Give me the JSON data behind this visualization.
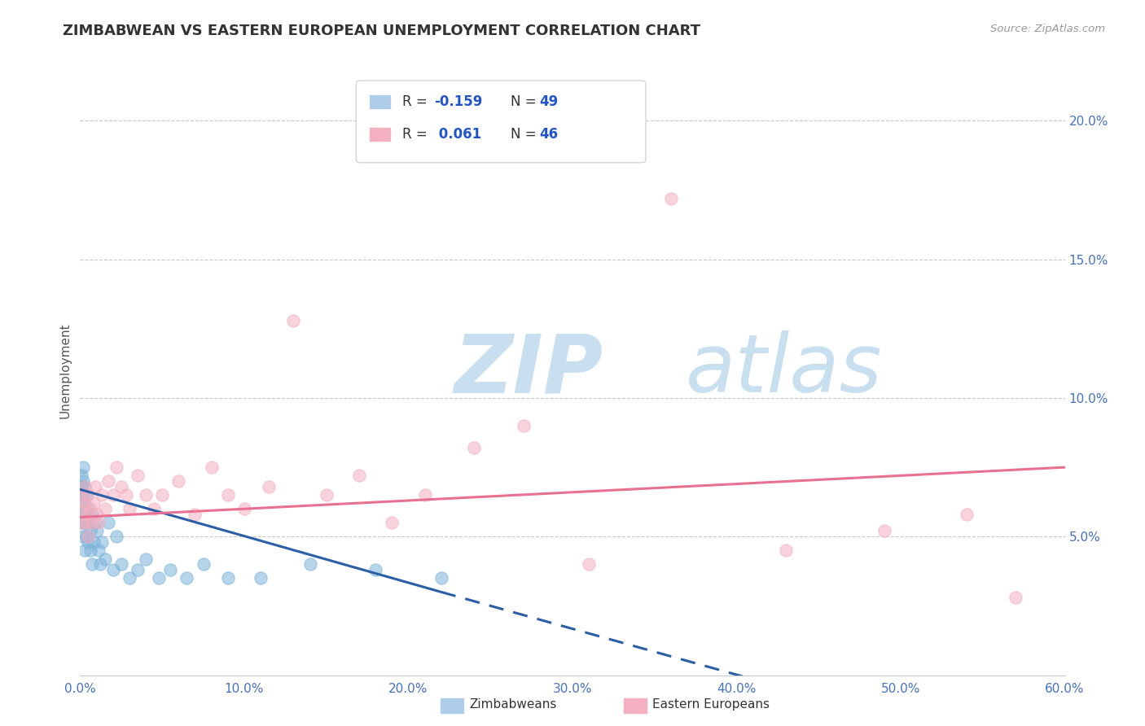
{
  "title": "ZIMBABWEAN VS EASTERN EUROPEAN UNEMPLOYMENT CORRELATION CHART",
  "source": "Source: ZipAtlas.com",
  "ylabel": "Unemployment",
  "xlim": [
    0,
    0.6
  ],
  "ylim": [
    0,
    0.22
  ],
  "xticks": [
    0.0,
    0.1,
    0.2,
    0.3,
    0.4,
    0.5,
    0.6
  ],
  "xticklabels": [
    "0.0%",
    "10.0%",
    "20.0%",
    "30.0%",
    "40.0%",
    "50.0%",
    "60.0%"
  ],
  "yticks": [
    0.05,
    0.1,
    0.15,
    0.2
  ],
  "yticklabels": [
    "5.0%",
    "10.0%",
    "15.0%",
    "20.0%"
  ],
  "zimbabwe_color": "#7ab3d9",
  "eastern_color": "#f4afc0",
  "zimbabwe_line_color": "#2a5fa8",
  "eastern_line_color": "#e87090",
  "legend_R_color": "#2255cc",
  "title_color": "#333333",
  "axis_color": "#4472c4",
  "grid_color": "#c8c8c8",
  "watermark_zip_color": "#c8dff0",
  "watermark_atlas_color": "#c8dff0",
  "background_color": "#ffffff",
  "zimbabwe_x": [
    0.001,
    0.001,
    0.001,
    0.001,
    0.001,
    0.002,
    0.002,
    0.002,
    0.002,
    0.002,
    0.002,
    0.003,
    0.003,
    0.003,
    0.003,
    0.003,
    0.004,
    0.004,
    0.004,
    0.005,
    0.005,
    0.005,
    0.006,
    0.006,
    0.007,
    0.007,
    0.008,
    0.009,
    0.01,
    0.011,
    0.012,
    0.013,
    0.015,
    0.017,
    0.02,
    0.022,
    0.025,
    0.03,
    0.035,
    0.04,
    0.048,
    0.055,
    0.065,
    0.075,
    0.09,
    0.11,
    0.14,
    0.18,
    0.22
  ],
  "zimbabwe_y": [
    0.065,
    0.072,
    0.06,
    0.055,
    0.068,
    0.065,
    0.075,
    0.058,
    0.05,
    0.055,
    0.07,
    0.062,
    0.045,
    0.055,
    0.068,
    0.06,
    0.05,
    0.058,
    0.065,
    0.055,
    0.048,
    0.06,
    0.052,
    0.045,
    0.04,
    0.058,
    0.048,
    0.055,
    0.052,
    0.045,
    0.04,
    0.048,
    0.042,
    0.055,
    0.038,
    0.05,
    0.04,
    0.035,
    0.038,
    0.042,
    0.035,
    0.038,
    0.035,
    0.04,
    0.035,
    0.035,
    0.04,
    0.038,
    0.035
  ],
  "eastern_x": [
    0.001,
    0.002,
    0.002,
    0.003,
    0.003,
    0.004,
    0.004,
    0.005,
    0.005,
    0.006,
    0.007,
    0.008,
    0.009,
    0.01,
    0.011,
    0.013,
    0.015,
    0.017,
    0.02,
    0.022,
    0.025,
    0.028,
    0.03,
    0.035,
    0.04,
    0.045,
    0.05,
    0.06,
    0.07,
    0.08,
    0.09,
    0.1,
    0.115,
    0.13,
    0.15,
    0.17,
    0.19,
    0.21,
    0.24,
    0.27,
    0.31,
    0.36,
    0.43,
    0.49,
    0.54,
    0.57
  ],
  "eastern_y": [
    0.065,
    0.06,
    0.055,
    0.068,
    0.062,
    0.055,
    0.058,
    0.065,
    0.05,
    0.06,
    0.055,
    0.062,
    0.068,
    0.058,
    0.055,
    0.065,
    0.06,
    0.07,
    0.065,
    0.075,
    0.068,
    0.065,
    0.06,
    0.072,
    0.065,
    0.06,
    0.065,
    0.07,
    0.058,
    0.075,
    0.065,
    0.06,
    0.068,
    0.128,
    0.065,
    0.072,
    0.055,
    0.065,
    0.082,
    0.09,
    0.04,
    0.172,
    0.045,
    0.052,
    0.058,
    0.028
  ],
  "trend_zim_x0": 0.0,
  "trend_zim_y0": 0.067,
  "trend_zim_x1": 0.22,
  "trend_zim_y1": 0.03,
  "trend_zim_xdash": 0.22,
  "trend_zim_ydash": 0.03,
  "trend_zim_xend": 0.6,
  "trend_zim_yend": -0.033,
  "trend_east_x0": 0.0,
  "trend_east_y0": 0.057,
  "trend_east_x1": 0.6,
  "trend_east_y1": 0.075
}
